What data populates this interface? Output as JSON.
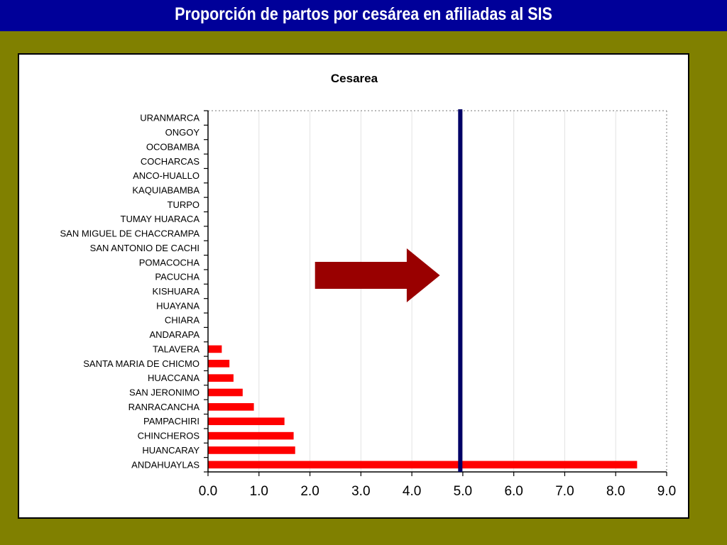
{
  "slide": {
    "title": "Proporción de partos  por cesárea en afiliadas al SIS"
  },
  "chart_data": {
    "type": "bar",
    "orientation": "horizontal",
    "title": "Cesarea",
    "xlabel": "",
    "ylabel": "",
    "xlim": [
      0,
      9
    ],
    "x_ticks": [
      "0.0",
      "1.0",
      "2.0",
      "3.0",
      "4.0",
      "5.0",
      "6.0",
      "7.0",
      "8.0",
      "9.0"
    ],
    "categories": [
      "URANMARCA",
      "ONGOY",
      "OCOBAMBA",
      "COCHARCAS",
      "ANCO-HUALLO",
      "KAQUIABAMBA",
      "TURPO",
      "TUMAY HUARACA",
      "SAN MIGUEL DE CHACCRAMPA",
      "SAN ANTONIO DE CACHI",
      "POMACOCHA",
      "PACUCHA",
      "KISHUARA",
      "HUAYANA",
      "CHIARA",
      "ANDARAPA",
      "TALAVERA",
      "SANTA MARIA DE CHICMO",
      "HUACCANA",
      "SAN JERONIMO",
      "RANRACANCHA",
      "PAMPACHIRI",
      "CHINCHEROS",
      "HUANCARAY",
      "ANDAHUAYLAS"
    ],
    "values": [
      0,
      0,
      0,
      0,
      0,
      0,
      0,
      0,
      0,
      0,
      0,
      0,
      0,
      0,
      0,
      0,
      0.27,
      0.42,
      0.5,
      0.68,
      0.9,
      1.5,
      1.68,
      1.71,
      8.42
    ],
    "reference_line": {
      "value": 4.95,
      "color": "#000066"
    },
    "bar_color": "#ff0000",
    "grid": true,
    "legend": "none",
    "annotation": {
      "shape": "right-arrow",
      "color": "#990000"
    }
  }
}
